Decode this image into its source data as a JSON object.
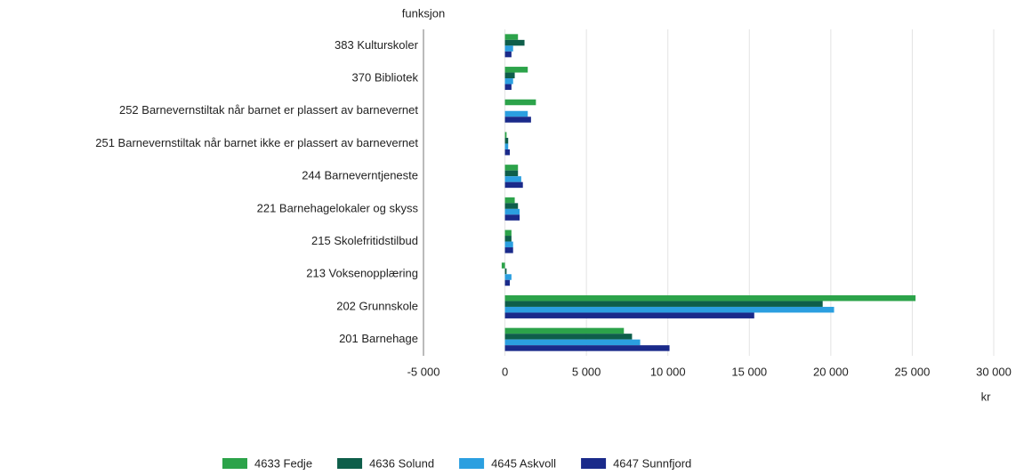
{
  "chart_data": {
    "type": "hbar",
    "y_label": "funksjon",
    "x_label": "kr",
    "categories": [
      "383 Kulturskoler",
      "370 Bibliotek",
      "252 Barnevernstiltak når barnet er plassert av barnevernet",
      "251 Barnevernstiltak når barnet ikke er plassert av barnevernet",
      "244 Barneverntjeneste",
      "221 Barnehagelokaler og skyss",
      "215 Skolefritidstilbud",
      "213 Voksenopplæring",
      "202 Grunnskole",
      "201 Barnehage"
    ],
    "series": [
      {
        "name": "4633 Fedje",
        "color": "#2ca34a",
        "values": [
          800,
          1400,
          1900,
          100,
          800,
          600,
          400,
          -200,
          25200,
          7300
        ]
      },
      {
        "name": "4636 Solund",
        "color": "#0e5e4a",
        "values": [
          1200,
          600,
          0,
          200,
          800,
          800,
          400,
          100,
          19500,
          7800
        ]
      },
      {
        "name": "4645 Askvoll",
        "color": "#2b9fe0",
        "values": [
          500,
          500,
          1400,
          200,
          1000,
          900,
          500,
          400,
          20200,
          8300
        ]
      },
      {
        "name": "4647 Sunnfjord",
        "color": "#1a2a8a",
        "values": [
          400,
          400,
          1600,
          300,
          1100,
          900,
          500,
          300,
          15300,
          10100
        ]
      }
    ],
    "xlim": [
      -5000,
      30000
    ],
    "xticks": [
      {
        "value": -5000,
        "label": "-5 000"
      },
      0,
      {
        "value": 5000,
        "label": "5 000"
      },
      {
        "value": 10000,
        "label": "10 000"
      },
      {
        "value": 15000,
        "label": "15 000"
      },
      {
        "value": 20000,
        "label": "20 000"
      },
      {
        "value": 25000,
        "label": "25 000"
      },
      {
        "value": 30000,
        "label": "30 000"
      }
    ],
    "grid": true
  }
}
